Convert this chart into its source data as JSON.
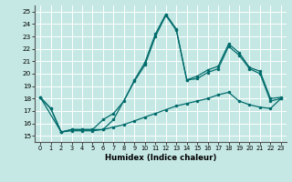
{
  "xlabel": "Humidex (Indice chaleur)",
  "xlim": [
    -0.5,
    23.5
  ],
  "ylim": [
    14.5,
    25.5
  ],
  "xticks": [
    0,
    1,
    2,
    3,
    4,
    5,
    6,
    7,
    8,
    9,
    10,
    11,
    12,
    13,
    14,
    15,
    16,
    17,
    18,
    19,
    20,
    21,
    22,
    23
  ],
  "yticks": [
    15,
    16,
    17,
    18,
    19,
    20,
    21,
    22,
    23,
    24,
    25
  ],
  "bg_color": "#c5e8e4",
  "line_color": "#006b6b",
  "grid_color": "#ffffff",
  "line1_x": [
    0,
    1,
    2,
    3,
    4,
    5,
    6,
    7,
    8,
    9,
    10,
    11,
    12,
    13,
    14,
    15,
    16,
    17,
    18,
    19,
    20,
    21,
    22,
    23
  ],
  "line1_y": [
    18.1,
    17.2,
    15.3,
    15.5,
    15.5,
    15.5,
    16.3,
    16.8,
    17.8,
    19.5,
    20.9,
    23.2,
    24.8,
    23.6,
    19.5,
    19.8,
    20.3,
    20.6,
    22.4,
    21.7,
    20.5,
    20.2,
    18.0,
    18.1
  ],
  "line2_x": [
    0,
    2,
    3,
    4,
    5,
    6,
    7,
    9,
    10,
    11,
    12,
    13,
    14,
    15,
    16,
    17,
    18,
    19,
    20,
    21,
    22,
    23
  ],
  "line2_y": [
    18.1,
    15.3,
    15.5,
    15.5,
    15.5,
    15.5,
    16.3,
    19.4,
    20.7,
    23.0,
    24.7,
    23.5,
    19.5,
    19.6,
    20.1,
    20.4,
    22.2,
    21.5,
    20.4,
    20.0,
    17.8,
    18.0
  ],
  "line3_x": [
    0,
    1,
    2,
    3,
    4,
    5,
    6,
    7,
    8,
    9,
    10,
    11,
    12,
    13,
    14,
    15,
    16,
    17,
    18,
    19,
    20,
    21,
    22,
    23
  ],
  "line3_y": [
    18.1,
    17.2,
    15.3,
    15.4,
    15.4,
    15.4,
    15.5,
    15.7,
    15.9,
    16.2,
    16.5,
    16.8,
    17.1,
    17.4,
    17.6,
    17.8,
    18.0,
    18.3,
    18.5,
    17.8,
    17.5,
    17.3,
    17.2,
    18.0
  ]
}
